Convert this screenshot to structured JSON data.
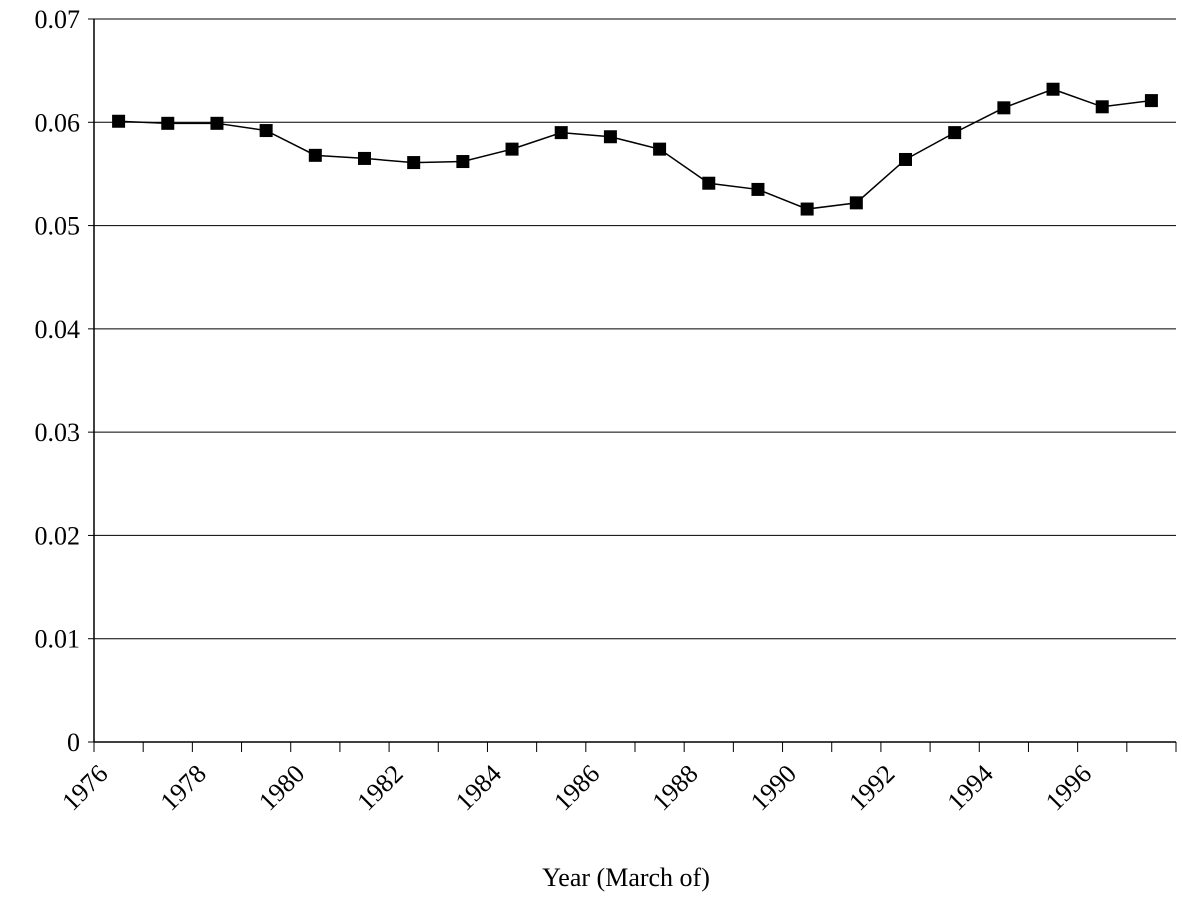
{
  "chart_data": {
    "type": "line",
    "categories": [
      "1976",
      null,
      "1978",
      null,
      "1980",
      null,
      "1982",
      null,
      "1984",
      null,
      "1986",
      null,
      "1988",
      null,
      "1990",
      null,
      "1992",
      null,
      "1994",
      null,
      "1996",
      null
    ],
    "series": [
      {
        "color": "#000000",
        "values": [
          0.0601,
          0.0599,
          0.0599,
          0.0592,
          0.0568,
          0.0565,
          0.0561,
          0.0562,
          0.0574,
          0.059,
          0.0586,
          0.0574,
          0.0541,
          0.0535,
          0.0516,
          0.0522,
          0.0564,
          0.059,
          0.0614,
          0.0632,
          0.0615,
          0.0621
        ]
      }
    ],
    "ylim": [
      0,
      0.07
    ],
    "yticks": [
      0,
      0.01,
      0.02,
      0.03,
      0.04,
      0.05,
      0.06,
      0.07
    ],
    "grid": true,
    "marker": "square",
    "xlabel": "Year (March of)"
  }
}
